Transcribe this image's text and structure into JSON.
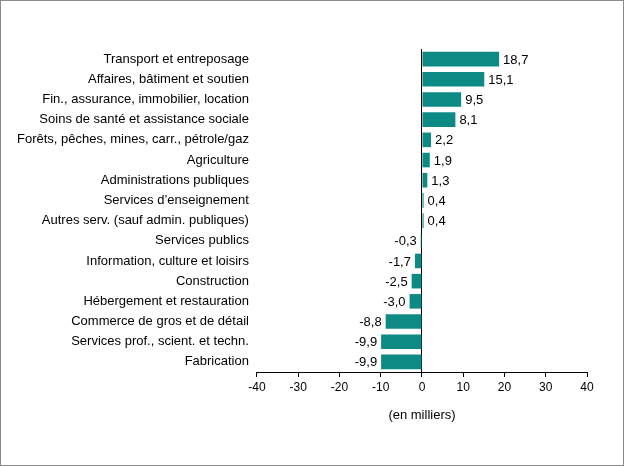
{
  "chart_data": {
    "type": "bar",
    "orientation": "horizontal",
    "categories": [
      "Transport et entreposage",
      "Affaires, bâtiment et soutien",
      "Fin., assurance, immobilier, location",
      "Soins de santé et assistance sociale",
      "Forêts, pêches, mines, carr., pétrole/gaz",
      "Agriculture",
      "Administrations publiques",
      "Services d’enseignement",
      "Autres serv. (sauf admin. publiques)",
      "Services publics",
      "Information, culture et loisirs",
      "Construction",
      "Hébergement et restauration",
      "Commerce de gros et de détail",
      "Services prof., scient. et techn.",
      "Fabrication"
    ],
    "values": [
      18.7,
      15.1,
      9.5,
      8.1,
      2.2,
      1.9,
      1.3,
      0.4,
      0.4,
      -0.3,
      -1.7,
      -2.5,
      -3.0,
      -8.8,
      -9.9,
      -9.9
    ],
    "value_labels": [
      "18,7",
      "15,1",
      "9,5",
      "8,1",
      "2,2",
      "1,9",
      "1,3",
      "0,4",
      "0,4",
      "-0,3",
      "-1,7",
      "-2,5",
      "-3,0",
      "-8,8",
      "-9,9",
      "-9,9"
    ],
    "color": "#0e8a84",
    "x_label": "(en milliers)",
    "xlim": [
      -40,
      40
    ],
    "xticks": [
      -40,
      -30,
      -20,
      -10,
      0,
      10,
      20,
      30,
      40
    ],
    "grid": false,
    "data_labels": true
  }
}
